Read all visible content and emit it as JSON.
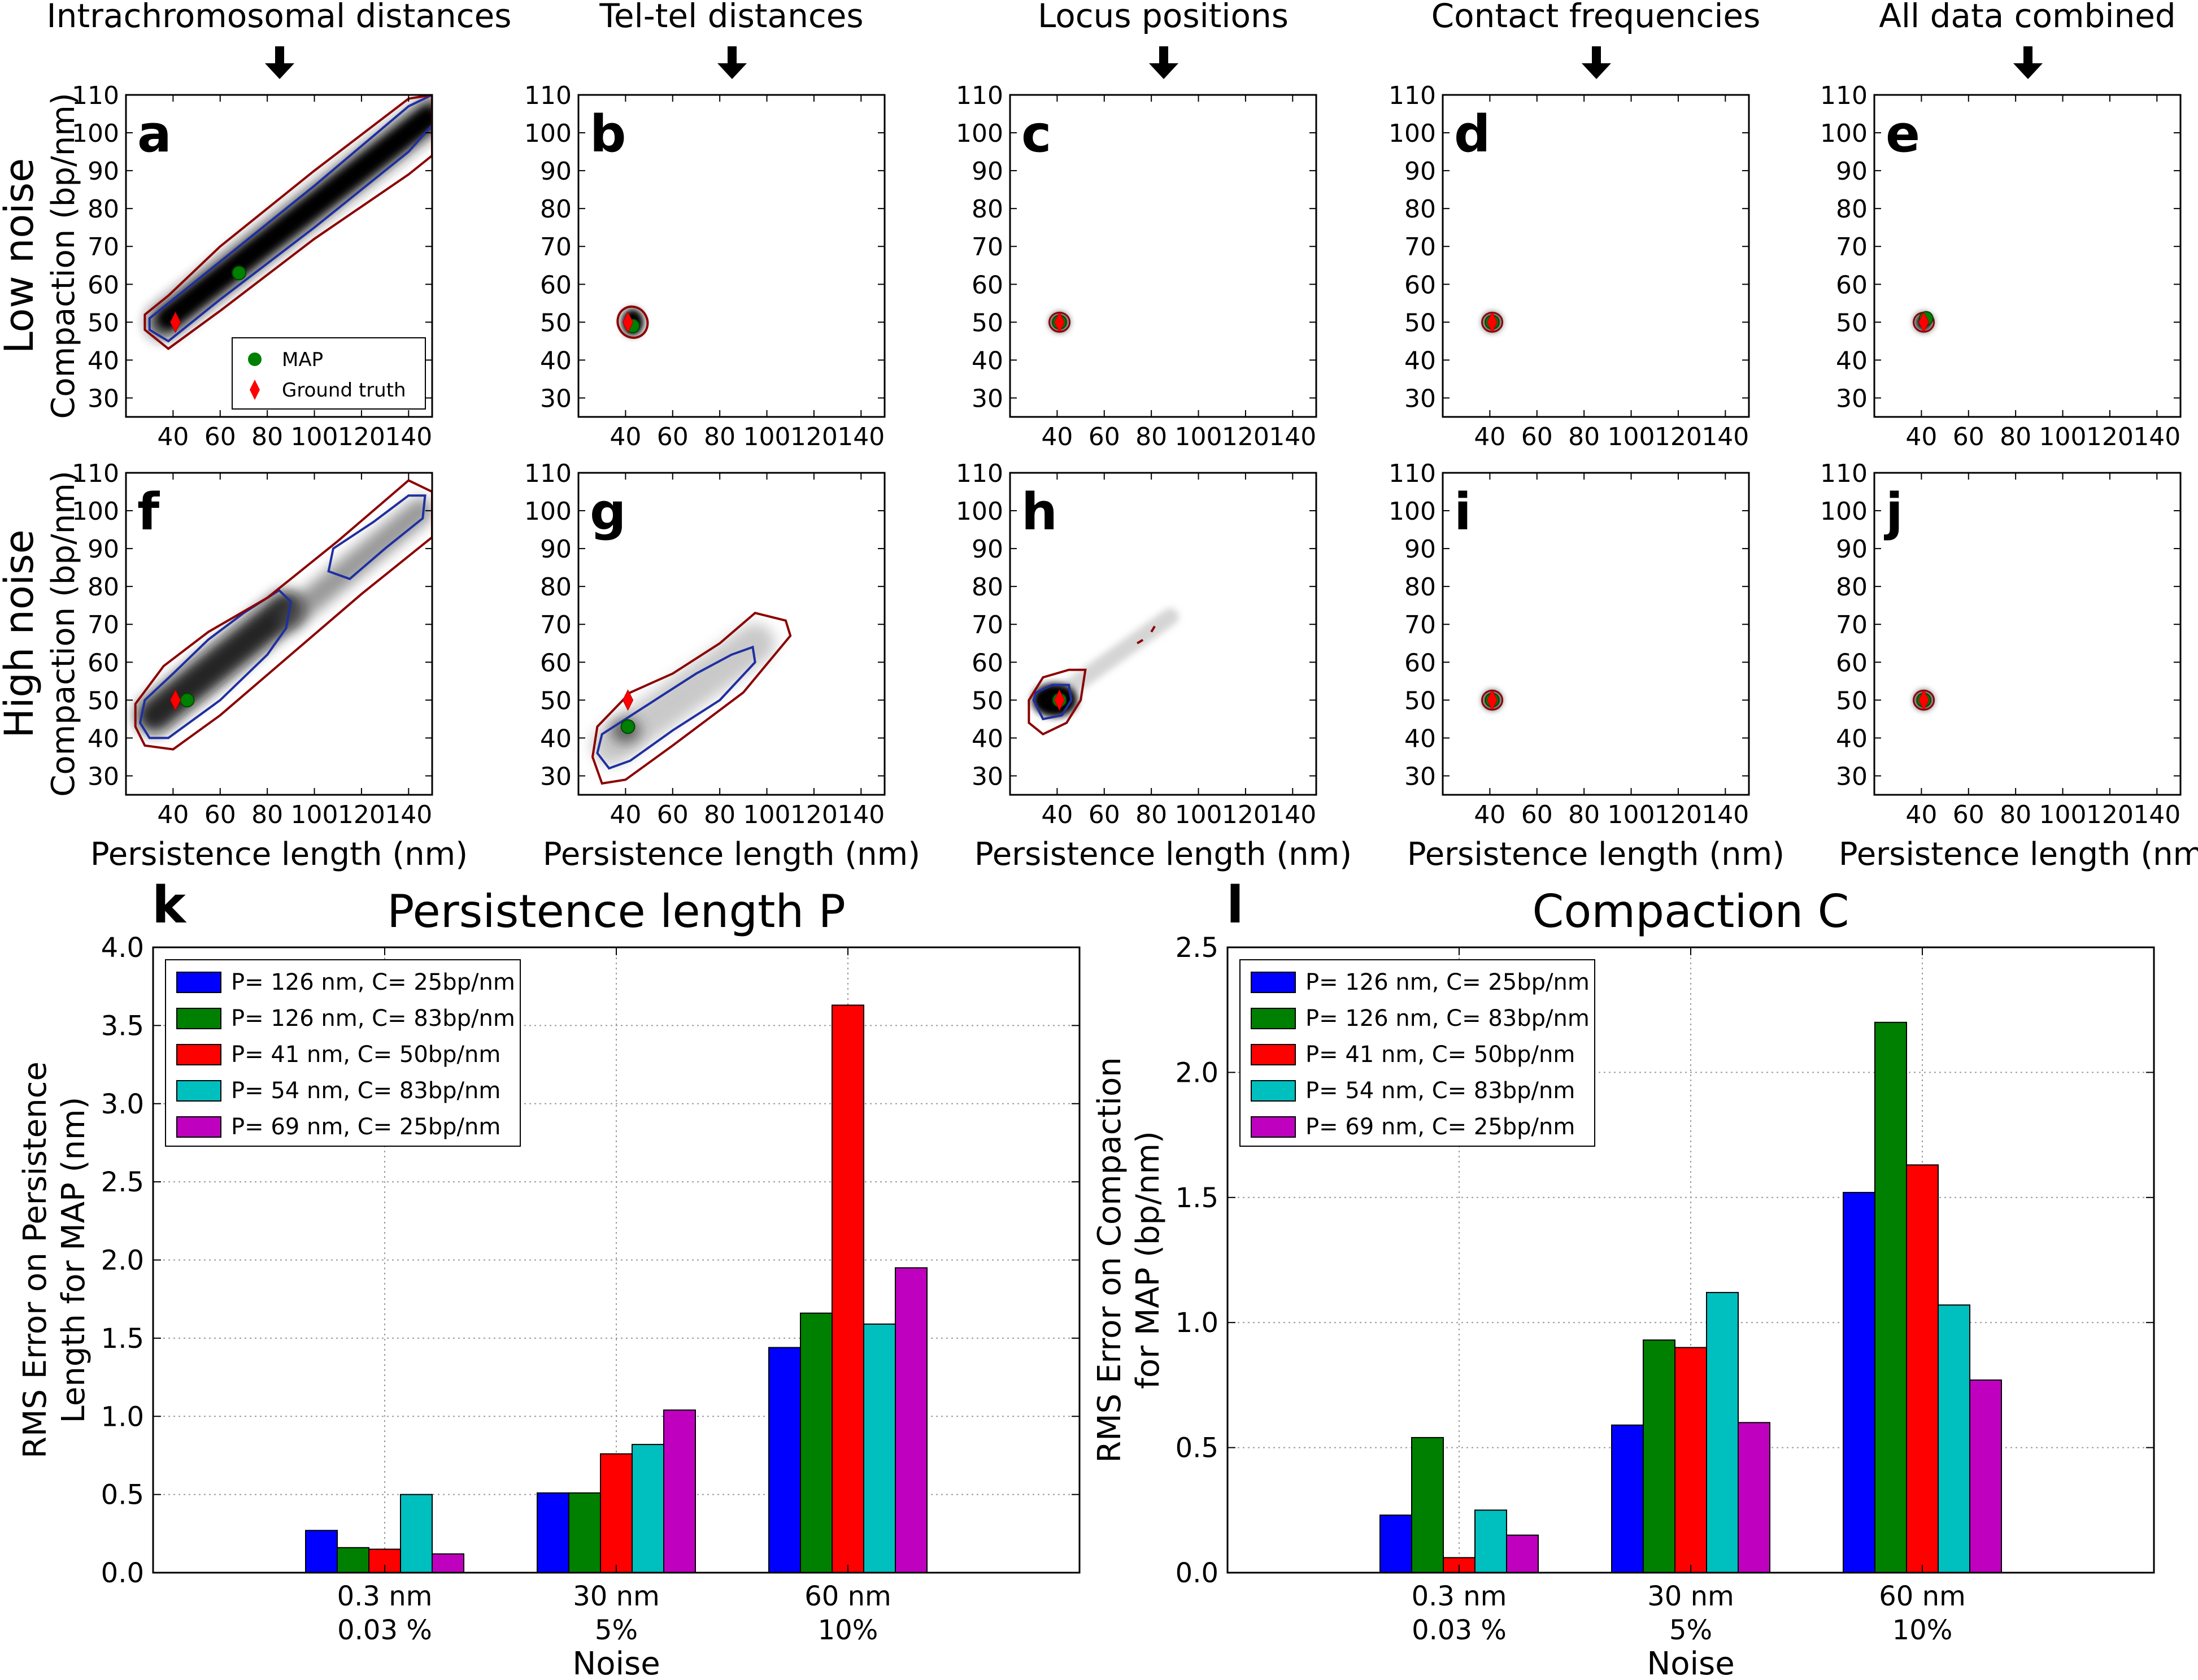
{
  "columns": [
    {
      "title": "Intrachromosomal distances",
      "arrow_icon": "down-arrow-icon"
    },
    {
      "title": "Tel-tel distances",
      "arrow_icon": "down-arrow-icon"
    },
    {
      "title": "Locus positions",
      "arrow_icon": "down-arrow-icon"
    },
    {
      "title": "Contact frequencies",
      "arrow_icon": "down-arrow-icon"
    },
    {
      "title": "All data combined",
      "arrow_icon": "down-arrow-icon"
    }
  ],
  "rows": [
    "Low noise",
    "High noise"
  ],
  "scatter_axes": {
    "ylabel": "Compaction (bp/nm)",
    "xlabel": "Persistence length (nm)",
    "x_ticks": [
      "40",
      "60",
      "80",
      "100",
      "120",
      "140"
    ],
    "y_ticks": [
      "30",
      "40",
      "50",
      "60",
      "70",
      "80",
      "90",
      "100",
      "110"
    ],
    "xlim": [
      20,
      150
    ],
    "ylim": [
      25,
      110
    ]
  },
  "legend_small": {
    "map": "MAP",
    "ground_truth": "Ground truth"
  },
  "colors": {
    "blue": "#0000ff",
    "green": "#008000",
    "red": "#ff0000",
    "cyan": "#00bfbf",
    "magenta": "#bf00bf",
    "darkred": "#8b0000",
    "contour_blue": "#1f2fa0"
  },
  "chart_data": [
    {
      "type": "scatter",
      "panel": "a",
      "noise": "low",
      "source": "Intrachromosomal distances",
      "map": [
        68,
        63
      ],
      "ground_truth": [
        41,
        50
      ]
    },
    {
      "type": "scatter",
      "panel": "b",
      "noise": "low",
      "source": "Tel-tel distances",
      "map": [
        43,
        49
      ],
      "ground_truth": [
        41,
        50
      ]
    },
    {
      "type": "scatter",
      "panel": "c",
      "noise": "low",
      "source": "Locus positions",
      "map": [
        41,
        50
      ],
      "ground_truth": [
        41,
        50
      ]
    },
    {
      "type": "scatter",
      "panel": "d",
      "noise": "low",
      "source": "Contact frequencies",
      "map": [
        41,
        50
      ],
      "ground_truth": [
        41,
        50
      ]
    },
    {
      "type": "scatter",
      "panel": "e",
      "noise": "low",
      "source": "All data combined",
      "map": [
        42,
        51
      ],
      "ground_truth": [
        41,
        50
      ]
    },
    {
      "type": "scatter",
      "panel": "f",
      "noise": "high",
      "source": "Intrachromosomal distances",
      "map": [
        46,
        50
      ],
      "ground_truth": [
        41,
        50
      ]
    },
    {
      "type": "scatter",
      "panel": "g",
      "noise": "high",
      "source": "Tel-tel distances",
      "map": [
        41,
        43
      ],
      "ground_truth": [
        41,
        50
      ]
    },
    {
      "type": "scatter",
      "panel": "h",
      "noise": "high",
      "source": "Locus positions",
      "map": [
        41,
        50
      ],
      "ground_truth": [
        41,
        50
      ]
    },
    {
      "type": "scatter",
      "panel": "i",
      "noise": "high",
      "source": "Contact frequencies",
      "map": [
        41,
        50
      ],
      "ground_truth": [
        41,
        50
      ]
    },
    {
      "type": "scatter",
      "panel": "j",
      "noise": "high",
      "source": "All data combined",
      "map": [
        41,
        50
      ],
      "ground_truth": [
        41,
        50
      ]
    },
    {
      "type": "bar",
      "panel": "k",
      "title": "Persistence length P",
      "ylabel": "RMS Error on Persistence Length for MAP (nm)",
      "xlabel": "Noise",
      "ylim": [
        0,
        4.0
      ],
      "y_ticks": [
        "0.0",
        "0.5",
        "1.0",
        "1.5",
        "2.0",
        "2.5",
        "3.0",
        "3.5",
        "4.0"
      ],
      "categories": [
        [
          "0.3 nm",
          "0.03 %"
        ],
        [
          "30 nm",
          "5%"
        ],
        [
          "60 nm",
          "10%"
        ]
      ],
      "series": [
        {
          "name": "P= 126 nm, C=  25bp/nm",
          "color": "blue",
          "values": [
            0.27,
            0.51,
            1.44
          ]
        },
        {
          "name": "P= 126 nm, C=  83bp/nm",
          "color": "green",
          "values": [
            0.16,
            0.51,
            1.66
          ]
        },
        {
          "name": "P= 41 nm, C=  50bp/nm",
          "color": "red",
          "values": [
            0.15,
            0.76,
            3.63
          ]
        },
        {
          "name": "P= 54 nm, C=  83bp/nm",
          "color": "cyan",
          "values": [
            0.5,
            0.82,
            1.59
          ]
        },
        {
          "name": "P= 69 nm, C=  25bp/nm",
          "color": "magenta",
          "values": [
            0.12,
            1.04,
            1.95
          ]
        }
      ]
    },
    {
      "type": "bar",
      "panel": "l",
      "title": "Compaction C",
      "ylabel": "RMS Error on Compaction for MAP (bp/nm)",
      "xlabel": "Noise",
      "ylim": [
        0,
        2.5
      ],
      "y_ticks": [
        "0.0",
        "0.5",
        "1.0",
        "1.5",
        "2.0",
        "2.5"
      ],
      "categories": [
        [
          "0.3 nm",
          "0.03 %"
        ],
        [
          "30 nm",
          "5%"
        ],
        [
          "60 nm",
          "10%"
        ]
      ],
      "series": [
        {
          "name": "P= 126 nm, C=  25bp/nm",
          "color": "blue",
          "values": [
            0.23,
            0.59,
            1.52
          ]
        },
        {
          "name": "P= 126 nm, C=  83bp/nm",
          "color": "green",
          "values": [
            0.54,
            0.93,
            2.2
          ]
        },
        {
          "name": "P= 41 nm, C=  50bp/nm",
          "color": "red",
          "values": [
            0.06,
            0.9,
            1.63
          ]
        },
        {
          "name": "P= 54 nm, C=  83bp/nm",
          "color": "cyan",
          "values": [
            0.25,
            1.12,
            1.07
          ]
        },
        {
          "name": "P= 69 nm, C=  25bp/nm",
          "color": "magenta",
          "values": [
            0.15,
            0.6,
            0.77
          ]
        }
      ]
    }
  ]
}
